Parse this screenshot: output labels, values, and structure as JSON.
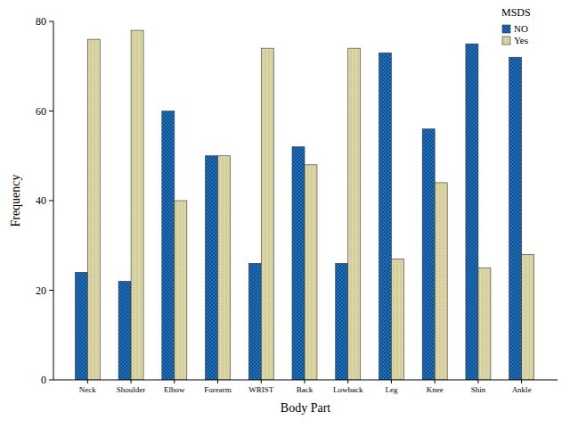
{
  "chart_data": {
    "type": "bar",
    "x_label": "Body Part",
    "y_label": "Frequency",
    "legend_title": "MSDS",
    "categories": [
      "Neck",
      "Shoulder",
      "Elbow",
      "Forearm",
      "WRIST",
      "Back",
      "Lowback",
      "Leg",
      "Knee",
      "Shin",
      "Ankle"
    ],
    "series": [
      {
        "name": "NO",
        "color": "#1f72c0",
        "values": [
          24,
          22,
          60,
          50,
          26,
          52,
          26,
          73,
          56,
          75,
          72
        ]
      },
      {
        "name": "Yes",
        "color": "#dcd6a4",
        "values": [
          76,
          78,
          40,
          50,
          74,
          48,
          74,
          27,
          44,
          25,
          28
        ]
      }
    ],
    "ylim": [
      0,
      80
    ],
    "yticks": [
      0,
      20,
      40,
      60,
      80
    ],
    "grid": false,
    "legend": "top-right"
  }
}
